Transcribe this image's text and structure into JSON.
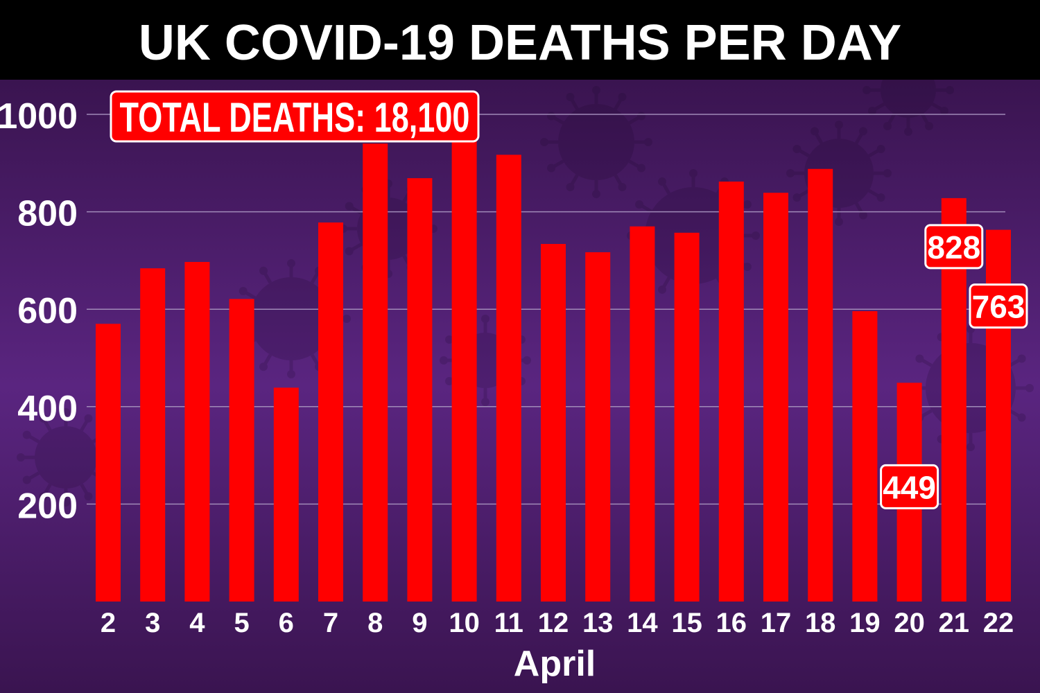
{
  "header": {
    "title": "UK COVID-19 DEATHS PER DAY"
  },
  "total_badge": {
    "text": "TOTAL DEATHS: 18,100"
  },
  "colors": {
    "bar": "#ff0000",
    "background_top": "#3a1450",
    "background_mid": "#5a2580",
    "background_bottom": "#3a1450",
    "header_bg": "#000000",
    "grid": "#a08ab8",
    "text": "#ffffff"
  },
  "chart_data": {
    "type": "bar",
    "title": "UK COVID-19 DEATHS PER DAY",
    "xlabel": "April",
    "ylabel": "",
    "ylim": [
      0,
      1050
    ],
    "yticks": [
      200,
      400,
      600,
      800,
      1000
    ],
    "grid": true,
    "categories": [
      "2",
      "3",
      "4",
      "5",
      "6",
      "7",
      "8",
      "9",
      "10",
      "11",
      "12",
      "13",
      "14",
      "15",
      "16",
      "17",
      "18",
      "19",
      "20",
      "21",
      "22"
    ],
    "values": [
      570,
      684,
      697,
      621,
      439,
      778,
      940,
      869,
      980,
      917,
      734,
      717,
      770,
      757,
      862,
      839,
      888,
      596,
      449,
      828,
      763
    ],
    "annotations": [
      {
        "category": "20",
        "label": "449"
      },
      {
        "category": "21",
        "label": "828"
      },
      {
        "category": "22",
        "label": "763"
      }
    ]
  }
}
